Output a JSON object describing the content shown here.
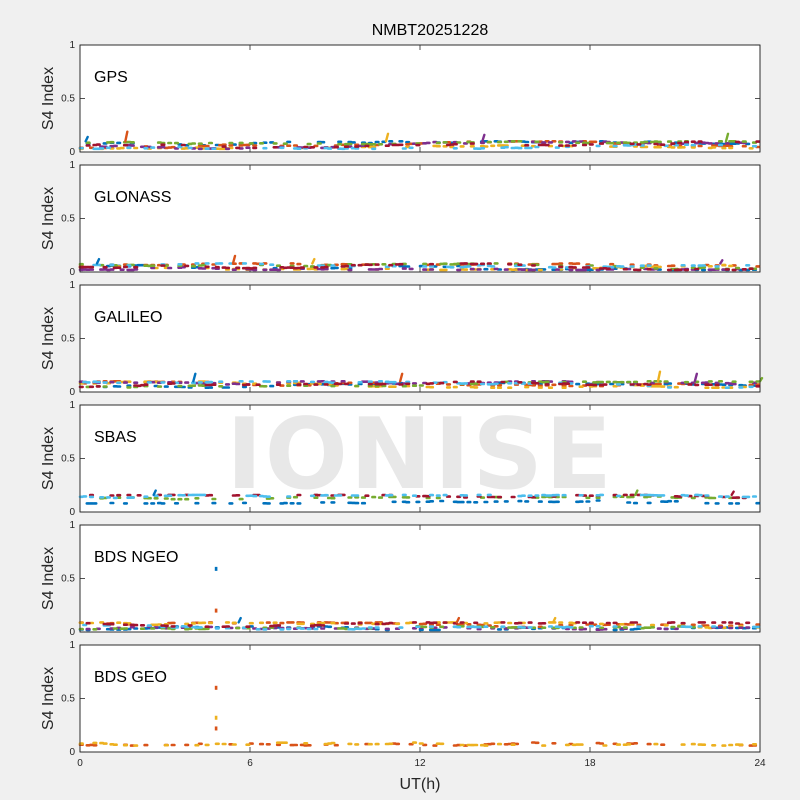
{
  "watermark": "IONISE",
  "chart_data": {
    "type": "scatter",
    "title": "NMBT20251228",
    "xlabel": "UT(h)",
    "xlim": [
      0,
      24
    ],
    "xticks": [
      0,
      6,
      12,
      18,
      24
    ],
    "grid": false,
    "panels": [
      {
        "label": "GPS",
        "ylabel": "S4 Index",
        "ylim": [
          0,
          1
        ],
        "yticks": [
          "0",
          "0.5",
          "1"
        ],
        "baseline_range": [
          0.03,
          0.1
        ],
        "colors": [
          "#0072BD",
          "#D95319",
          "#EDB120",
          "#7E2F8E",
          "#77AC30",
          "#4DBEEE",
          "#A2142F"
        ],
        "spikes": [
          [
            0.2,
            0.14
          ],
          [
            1.6,
            0.19
          ],
          [
            10.8,
            0.17
          ],
          [
            14.2,
            0.16
          ],
          [
            22.8,
            0.17
          ]
        ],
        "outliers": []
      },
      {
        "label": "GLONASS",
        "ylabel": "S4 Index",
        "ylim": [
          0,
          1
        ],
        "yticks": [
          "0",
          "0.5",
          "1"
        ],
        "baseline_range": [
          0.02,
          0.08
        ],
        "colors": [
          "#0072BD",
          "#D95319",
          "#EDB120",
          "#7E2F8E",
          "#77AC30",
          "#4DBEEE",
          "#A2142F"
        ],
        "spikes": [
          [
            0.6,
            0.12
          ],
          [
            5.4,
            0.15
          ],
          [
            8.2,
            0.12
          ],
          [
            22.6,
            0.11
          ]
        ],
        "outliers": []
      },
      {
        "label": "GALILEO",
        "ylabel": "S4 Index",
        "ylim": [
          0,
          1
        ],
        "yticks": [
          "0",
          "0.5",
          "1"
        ],
        "baseline_range": [
          0.04,
          0.1
        ],
        "colors": [
          "#0072BD",
          "#D95319",
          "#EDB120",
          "#7E2F8E",
          "#77AC30",
          "#4DBEEE",
          "#A2142F"
        ],
        "spikes": [
          [
            4.0,
            0.17
          ],
          [
            11.3,
            0.17
          ],
          [
            20.4,
            0.19
          ],
          [
            21.7,
            0.17
          ],
          [
            24.0,
            0.13
          ]
        ],
        "outliers": []
      },
      {
        "label": "SBAS",
        "ylabel": "S4 Index",
        "ylim": [
          0,
          1
        ],
        "yticks": [
          "0",
          "0.5",
          "1"
        ],
        "baseline_range": [
          0.08,
          0.16
        ],
        "colors": [
          "#0072BD",
          "#77AC30",
          "#A2142F",
          "#4DBEEE"
        ],
        "spikes": [
          [
            2.6,
            0.2
          ],
          [
            19.6,
            0.2
          ],
          [
            23.0,
            0.19
          ]
        ],
        "outliers": []
      },
      {
        "label": "BDS NGEO",
        "ylabel": "S4 Index",
        "ylim": [
          0,
          1
        ],
        "yticks": [
          "0",
          "0.5",
          "1"
        ],
        "baseline_range": [
          0.02,
          0.09
        ],
        "colors": [
          "#0072BD",
          "#D95319",
          "#EDB120",
          "#7E2F8E",
          "#77AC30",
          "#4DBEEE",
          "#A2142F"
        ],
        "spikes": [
          [
            5.6,
            0.13
          ],
          [
            13.3,
            0.13
          ],
          [
            16.7,
            0.13
          ]
        ],
        "outliers": [
          [
            4.8,
            0.59
          ],
          [
            4.8,
            0.2
          ]
        ]
      },
      {
        "label": "BDS GEO",
        "ylabel": "S4 Index",
        "ylim": [
          0,
          1
        ],
        "yticks": [
          "0",
          "0.5",
          "1"
        ],
        "baseline_range": [
          0.06,
          0.1
        ],
        "colors": [
          "#D95319",
          "#EDB120"
        ],
        "spikes": [],
        "outliers": [
          [
            4.8,
            0.6
          ],
          [
            4.8,
            0.32
          ],
          [
            4.8,
            0.22
          ]
        ]
      }
    ]
  }
}
